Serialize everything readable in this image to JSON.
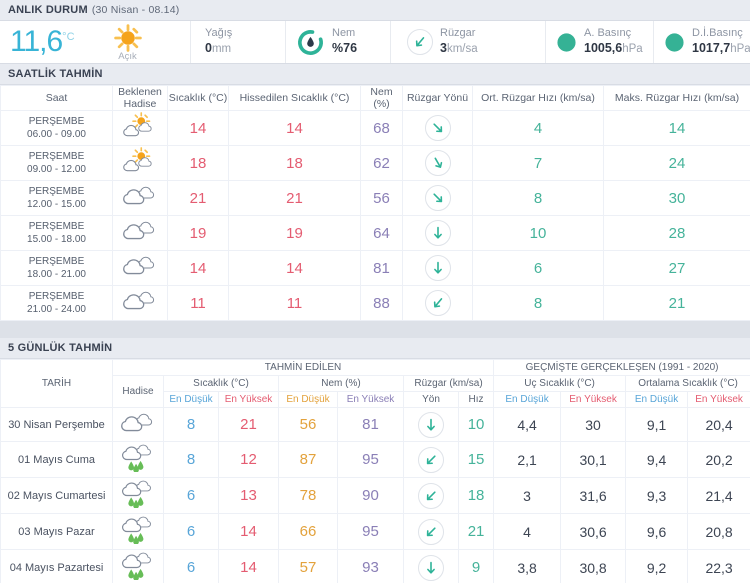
{
  "current": {
    "section_title": "ANLIK DURUM",
    "section_subtitle": "(30 Nisan - 08.14)",
    "temperature": "11,6",
    "temperature_unit": "°C",
    "condition_icon": "sun",
    "condition_label": "Açık",
    "precip_label": "Yağış",
    "precip_value": "0",
    "precip_unit": "mm",
    "humidity_label": "Nem",
    "humidity_value": "%76",
    "wind_label": "Rüzgar",
    "wind_value": "3",
    "wind_unit": "km/sa",
    "wind_deg": 40,
    "pressure_label": "A. Basınç",
    "pressure_value": "1005,6",
    "pressure_unit": "hPa",
    "sea_pressure_label": "D.İ.Basınç",
    "sea_pressure_value": "1017,7",
    "sea_pressure_unit": "hPa"
  },
  "hourly": {
    "section_title": "SAATLİK TAHMİN",
    "columns": [
      "Saat",
      "Beklenen Hadise",
      "Sıcaklık (°C)",
      "Hissedilen Sıcaklık (°C)",
      "Nem (%)",
      "Rüzgar Yönü",
      "Ort. Rüzgar Hızı (km/sa)",
      "Maks. Rüzgar Hızı (km/sa)"
    ],
    "rows": [
      {
        "day": "PERŞEMBE",
        "time": "06.00 - 09.00",
        "icon": "sun-cloud",
        "temp": "14",
        "feels": "14",
        "humidity": "68",
        "wind_deg": -45,
        "avg_wind": "4",
        "max_wind": "14"
      },
      {
        "day": "PERŞEMBE",
        "time": "09.00 - 12.00",
        "icon": "sun-cloud",
        "temp": "18",
        "feels": "18",
        "humidity": "62",
        "wind_deg": -30,
        "avg_wind": "7",
        "max_wind": "24"
      },
      {
        "day": "PERŞEMBE",
        "time": "12.00 - 15.00",
        "icon": "cloud",
        "temp": "21",
        "feels": "21",
        "humidity": "56",
        "wind_deg": -45,
        "avg_wind": "8",
        "max_wind": "30"
      },
      {
        "day": "PERŞEMBE",
        "time": "15.00 - 18.00",
        "icon": "cloud",
        "temp": "19",
        "feels": "19",
        "humidity": "64",
        "wind_deg": 0,
        "avg_wind": "10",
        "max_wind": "28"
      },
      {
        "day": "PERŞEMBE",
        "time": "18.00 - 21.00",
        "icon": "cloud",
        "temp": "14",
        "feels": "14",
        "humidity": "81",
        "wind_deg": 0,
        "avg_wind": "6",
        "max_wind": "27"
      },
      {
        "day": "PERŞEMBE",
        "time": "21.00 - 24.00",
        "icon": "cloud",
        "temp": "11",
        "feels": "11",
        "humidity": "88",
        "wind_deg": 40,
        "avg_wind": "8",
        "max_wind": "21"
      }
    ]
  },
  "daily": {
    "section_title": "5 GÜNLÜK TAHMİN",
    "header": {
      "date": "TARİH",
      "hadise": "Hadise",
      "predicted": "TAHMİN EDİLEN",
      "historical": "GEÇMİŞTE GERÇEKLEŞEN (1991 - 2020)",
      "temp_group": "Sıcaklık (°C)",
      "hum_group": "Nem (%)",
      "wind_group": "Rüzgar (km/sa)",
      "extreme_group": "Uç Sıcaklık (°C)",
      "avg_group": "Ortalama Sıcaklık (°C)",
      "low": "En Düşük",
      "high": "En Yüksek",
      "dir": "Yön",
      "speed": "Hız"
    },
    "rows": [
      {
        "date": "30 Nisan Perşembe",
        "icon": "cloud",
        "tmin": "8",
        "tmax": "21",
        "hmin": "56",
        "hmax": "81",
        "wind_deg": 0,
        "speed": "10",
        "ext_min": "4,4",
        "ext_max": "30",
        "avg_min": "9,1",
        "avg_max": "20,4"
      },
      {
        "date": "01 Mayıs Cuma",
        "icon": "rain",
        "tmin": "8",
        "tmax": "12",
        "hmin": "87",
        "hmax": "95",
        "wind_deg": 45,
        "speed": "15",
        "ext_min": "2,1",
        "ext_max": "30,1",
        "avg_min": "9,4",
        "avg_max": "20,2"
      },
      {
        "date": "02 Mayıs Cumartesi",
        "icon": "rain",
        "tmin": "6",
        "tmax": "13",
        "hmin": "78",
        "hmax": "90",
        "wind_deg": 45,
        "speed": "18",
        "ext_min": "3",
        "ext_max": "31,6",
        "avg_min": "9,3",
        "avg_max": "21,4"
      },
      {
        "date": "03 Mayıs Pazar",
        "icon": "rain",
        "tmin": "6",
        "tmax": "14",
        "hmin": "66",
        "hmax": "95",
        "wind_deg": 45,
        "speed": "21",
        "ext_min": "4",
        "ext_max": "30,6",
        "avg_min": "9,6",
        "avg_max": "20,8"
      },
      {
        "date": "04 Mayıs Pazartesi",
        "icon": "rain",
        "tmin": "6",
        "tmax": "14",
        "hmin": "57",
        "hmax": "93",
        "wind_deg": 0,
        "speed": "9",
        "ext_min": "3,8",
        "ext_max": "30,8",
        "avg_min": "9,2",
        "avg_max": "22,3"
      }
    ]
  },
  "colors": {
    "accent_teal": "#2eb398",
    "temp_cyan": "#38b4d6",
    "temp_red": "#e45c71",
    "temp_blue": "#58a5d8",
    "hum_orange": "#e3a23c",
    "hum_purple": "#8a7fb6"
  }
}
